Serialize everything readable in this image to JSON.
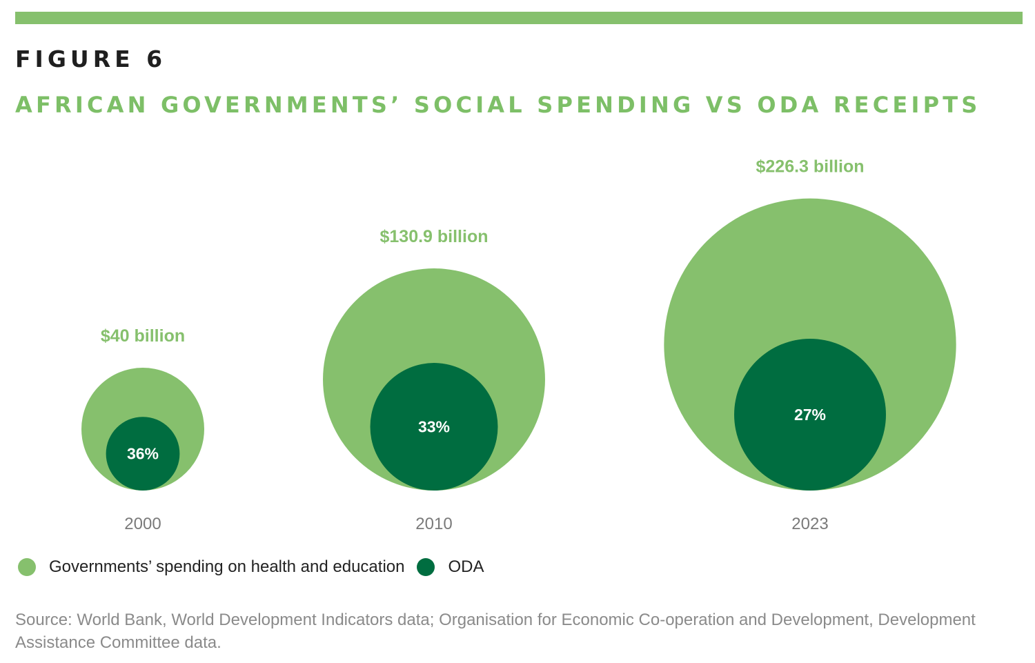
{
  "figure_label": "FIGURE 6",
  "colors": {
    "spending": "#86c06d",
    "oda": "#006d40",
    "title": "#7dbf67",
    "value_label": "#86c06d",
    "year_label": "#7a7a7a",
    "pct_label": "#ffffff"
  },
  "legend": [
    {
      "label": "Governments’ spending on health and education",
      "color_key": "spending"
    },
    {
      "label": "ODA",
      "color_key": "oda"
    }
  ],
  "source": "Source: World Bank, World Development Indicators data; Organisation for Economic Co-operation and Development, Development Assistance Committee data.",
  "chart_data": {
    "type": "bubble-nested",
    "title": "AFRICAN GOVERNMENTS’ SOCIAL SPENDING VS ODA RECEIPTS",
    "xlabel": "",
    "ylabel": "",
    "categories": [
      "2000",
      "2010",
      "2023"
    ],
    "series": [
      {
        "name": "Governments’ spending on health and education",
        "unit": "billion USD",
        "values": [
          40,
          130.9,
          226.3
        ],
        "labels": [
          "$40 billion",
          "$130.9 billion",
          "$226.3 billion"
        ]
      },
      {
        "name": "ODA",
        "unit": "percent of government social spending",
        "values": [
          36,
          33,
          27
        ],
        "labels": [
          "36%",
          "33%",
          "27%"
        ]
      }
    ],
    "grid": false,
    "legend_position": "bottom-left"
  }
}
